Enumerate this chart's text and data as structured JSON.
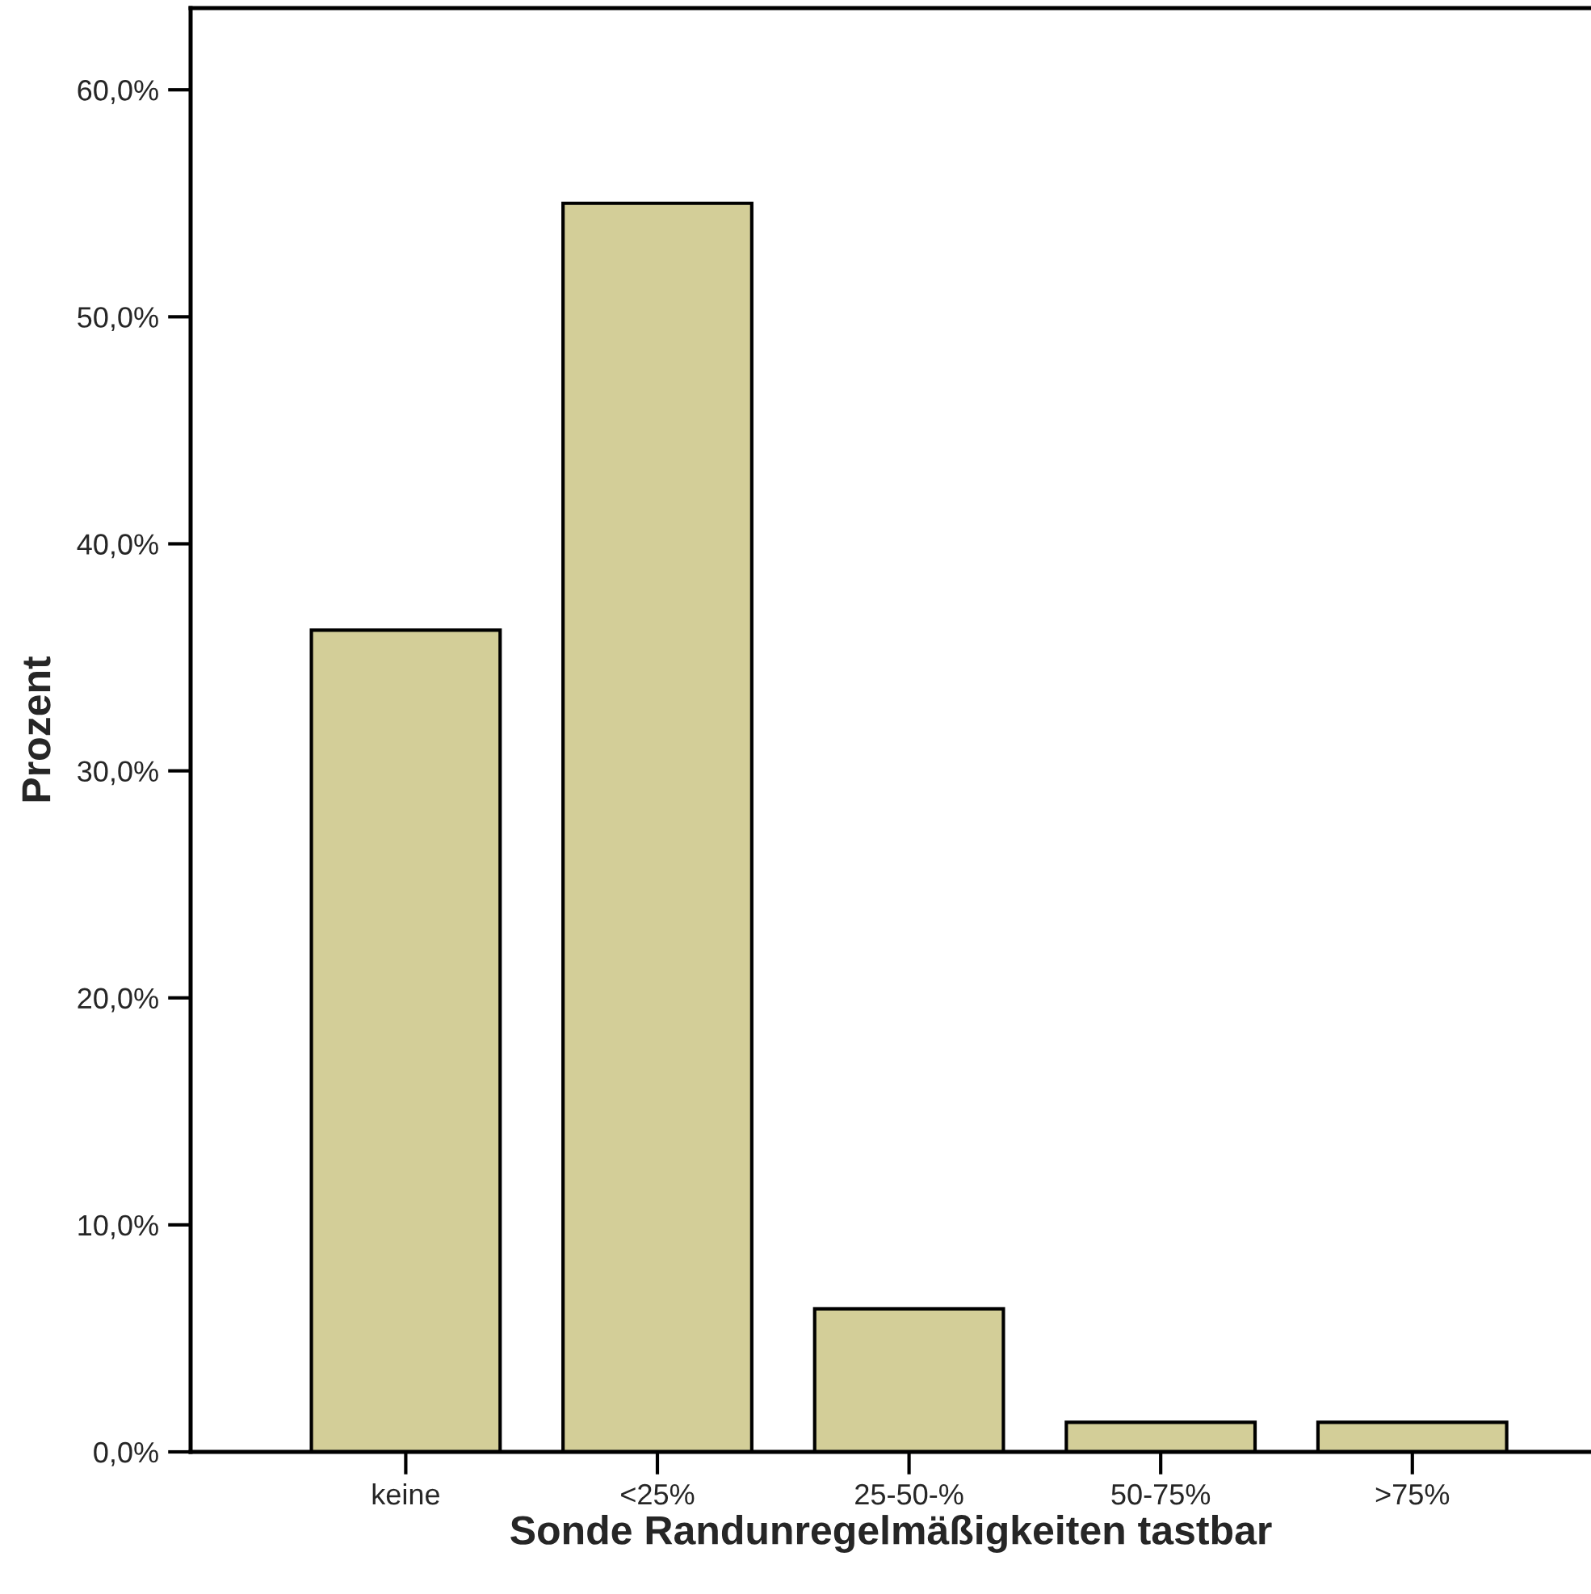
{
  "chart_data": {
    "type": "bar",
    "xlabel": "Sonde Randunregelmäßigkeiten tastbar",
    "ylabel": "Prozent",
    "categories": [
      "keine",
      "<25%",
      "25-50-%",
      "50-75%",
      ">75%"
    ],
    "values": [
      36.2,
      55.0,
      6.3,
      1.3,
      1.3
    ],
    "color": "#d3ce98",
    "ylim": [
      0,
      63.6
    ],
    "yticks": [
      {
        "value": 0,
        "label": "0,0%"
      },
      {
        "value": 10,
        "label": "10,0%"
      },
      {
        "value": 20,
        "label": "20,0%"
      },
      {
        "value": 30,
        "label": "30,0%"
      },
      {
        "value": 40,
        "label": "40,0%"
      },
      {
        "value": 50,
        "label": "50,0%"
      },
      {
        "value": 60,
        "label": "60,0%"
      }
    ],
    "grid": false
  }
}
